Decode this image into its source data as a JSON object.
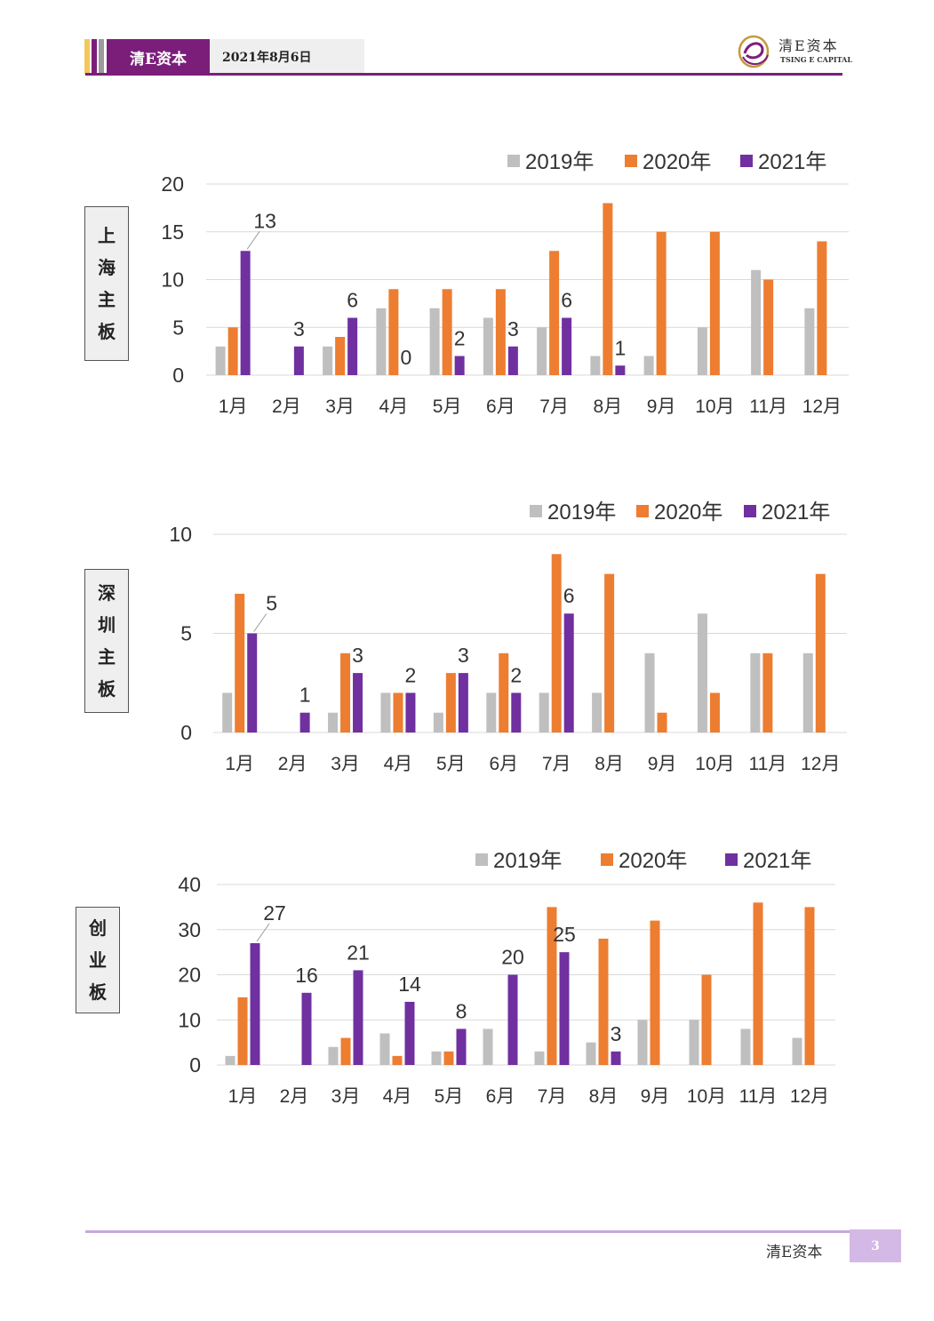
{
  "header": {
    "brand": "清E资本",
    "date": "2021年8月6日",
    "logo_cn": "清E资本",
    "logo_en": "TSING E CAPITAL",
    "stripe_colors": [
      "#f2c75c",
      "#7b1e7a",
      "#9b9b9b"
    ],
    "accent_color": "#7b1e7a"
  },
  "footer": {
    "brand": "清E资本",
    "page_number": "3"
  },
  "side_labels": {
    "sh": [
      "上",
      "海",
      "主",
      "板"
    ],
    "sz": [
      "深",
      "圳",
      "主",
      "板"
    ],
    "cy": [
      "创",
      "业",
      "板"
    ]
  },
  "chart_data": [
    {
      "id": "sh",
      "type": "bar",
      "categories": [
        "1月",
        "2月",
        "3月",
        "4月",
        "5月",
        "6月",
        "7月",
        "8月",
        "9月",
        "10月",
        "11月",
        "12月"
      ],
      "series": [
        {
          "name": "2019年",
          "color": "#bfbfbf",
          "values": [
            3,
            0,
            3,
            7,
            7,
            6,
            5,
            2,
            2,
            5,
            11,
            7
          ]
        },
        {
          "name": "2020年",
          "color": "#ed7d31",
          "values": [
            5,
            0,
            4,
            9,
            9,
            9,
            13,
            18,
            15,
            15,
            10,
            14
          ]
        },
        {
          "name": "2021年",
          "color": "#7030a0",
          "values": [
            13,
            3,
            6,
            0,
            2,
            3,
            6,
            1,
            null,
            null,
            null,
            null
          ],
          "data_labels": true
        }
      ],
      "ylim": [
        0,
        20
      ],
      "yticks": [
        0,
        5,
        10,
        15,
        20
      ],
      "grid": true,
      "legend": "top-right"
    },
    {
      "id": "sz",
      "type": "bar",
      "categories": [
        "1月",
        "2月",
        "3月",
        "4月",
        "5月",
        "6月",
        "7月",
        "8月",
        "9月",
        "10月",
        "11月",
        "12月"
      ],
      "series": [
        {
          "name": "2019年",
          "color": "#bfbfbf",
          "values": [
            2,
            0,
            1,
            2,
            1,
            2,
            2,
            2,
            4,
            6,
            4,
            4
          ]
        },
        {
          "name": "2020年",
          "color": "#ed7d31",
          "values": [
            7,
            0,
            4,
            2,
            3,
            4,
            9,
            8,
            1,
            2,
            4,
            8
          ]
        },
        {
          "name": "2021年",
          "color": "#7030a0",
          "values": [
            5,
            1,
            3,
            2,
            3,
            2,
            6,
            null,
            null,
            null,
            null,
            null
          ],
          "data_labels": true
        }
      ],
      "ylim": [
        0,
        10
      ],
      "yticks": [
        0,
        5,
        10
      ],
      "grid": true,
      "legend": "top-right"
    },
    {
      "id": "cy",
      "type": "bar",
      "categories": [
        "1月",
        "2月",
        "3月",
        "4月",
        "5月",
        "6月",
        "7月",
        "8月",
        "9月",
        "10月",
        "11月",
        "12月"
      ],
      "series": [
        {
          "name": "2019年",
          "color": "#bfbfbf",
          "values": [
            2,
            0,
            4,
            7,
            3,
            8,
            3,
            5,
            10,
            10,
            8,
            6
          ]
        },
        {
          "name": "2020年",
          "color": "#ed7d31",
          "values": [
            15,
            0,
            6,
            2,
            3,
            0,
            35,
            28,
            32,
            20,
            36,
            35
          ]
        },
        {
          "name": "2021年",
          "color": "#7030a0",
          "values": [
            27,
            16,
            21,
            14,
            8,
            20,
            25,
            3,
            null,
            null,
            null,
            null
          ],
          "data_labels": true
        }
      ],
      "ylim": [
        0,
        40
      ],
      "yticks": [
        0,
        10,
        20,
        30,
        40
      ],
      "grid": true,
      "legend": "top-right"
    }
  ]
}
